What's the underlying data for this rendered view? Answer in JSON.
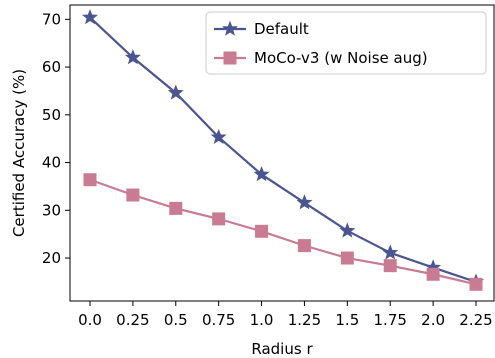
{
  "chart_data": {
    "type": "line",
    "title": "",
    "xlabel": "Radius r",
    "ylabel": "Certified Accuracy (%)",
    "categories": [
      "0.0",
      "0.25",
      "0.5",
      "0.75",
      "1.0",
      "1.25",
      "1.5",
      "1.75",
      "2.0",
      "2.25"
    ],
    "yticks": [
      20,
      30,
      40,
      50,
      60,
      70
    ],
    "ylim": [
      11,
      73
    ],
    "grid": false,
    "legend_position": "top-right",
    "series": [
      {
        "name": "Default",
        "color": "#4b5690",
        "marker": "star",
        "values": [
          70.4,
          62.0,
          54.6,
          45.3,
          37.5,
          31.6,
          25.7,
          21.1,
          18.0,
          15.0
        ]
      },
      {
        "name": "MoCo-v3 (w Noise aug)",
        "color": "#c97b93",
        "marker": "square",
        "values": [
          36.4,
          33.2,
          30.4,
          28.2,
          25.6,
          22.6,
          20.0,
          18.4,
          16.6,
          14.5
        ]
      }
    ]
  }
}
